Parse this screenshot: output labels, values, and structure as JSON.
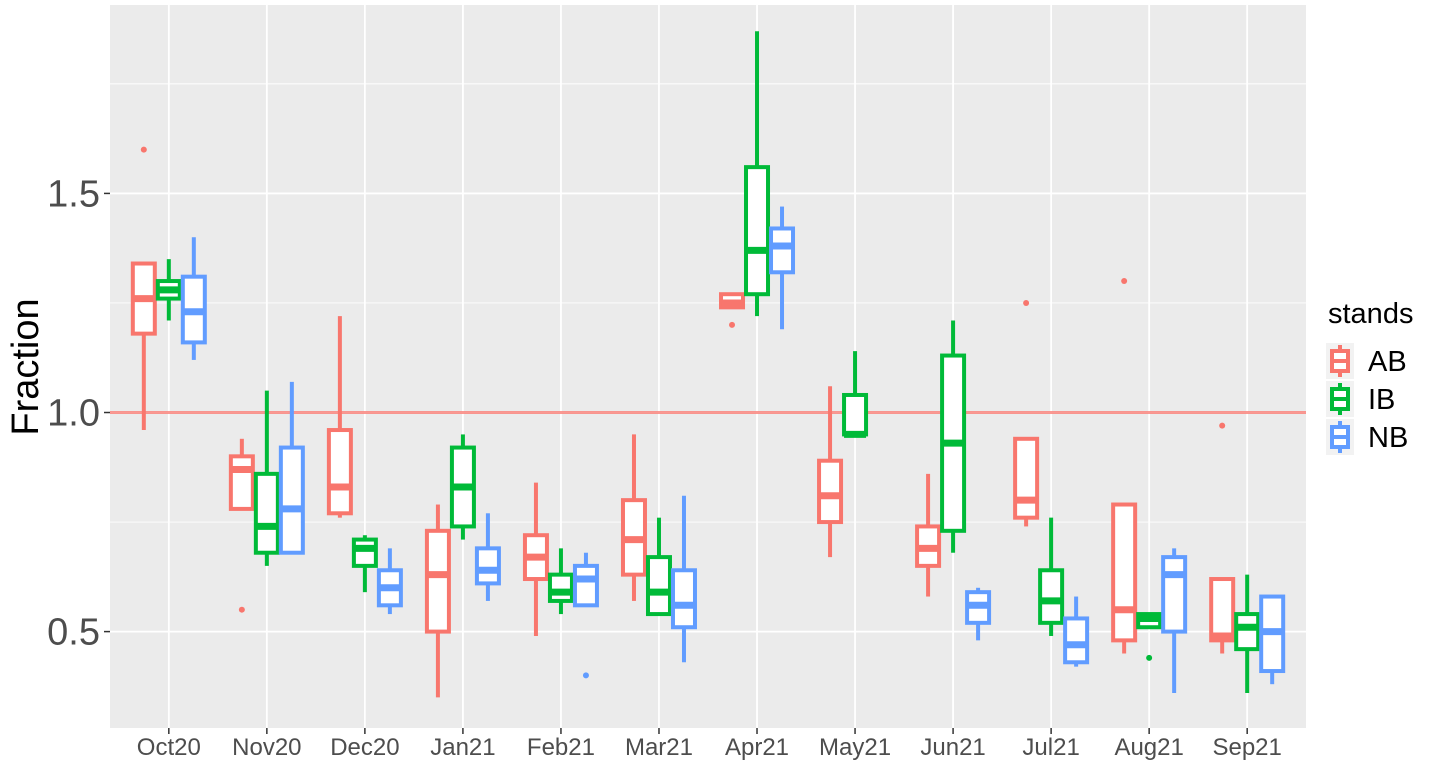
{
  "chart_data": {
    "type": "boxplot",
    "xlabel": "",
    "ylabel": "Fraction",
    "ylim": [
      0.28,
      1.93
    ],
    "yticks": [
      0.5,
      1.0,
      1.5
    ],
    "ytick_labels": [
      "0.5",
      "1.0",
      "1.5"
    ],
    "reference_line": {
      "y": 1.0,
      "color": "#F8766D"
    },
    "categories": [
      "Oct20",
      "Nov20",
      "Dec20",
      "Jan21",
      "Feb21",
      "Mar21",
      "Apr21",
      "May21",
      "Jun21",
      "Jul21",
      "Aug21",
      "Sep21"
    ],
    "legend": {
      "title": "stands",
      "position": "right"
    },
    "grid": true,
    "series": [
      {
        "name": "AB",
        "color": "#F8766D",
        "boxes": [
          {
            "category": "Oct20",
            "whislo": 0.96,
            "q1": 1.18,
            "med": 1.26,
            "q3": 1.34,
            "whishi": 1.34,
            "outliers": [
              1.6
            ]
          },
          {
            "category": "Nov20",
            "whislo": 0.78,
            "q1": 0.78,
            "med": 0.87,
            "q3": 0.9,
            "whishi": 0.94,
            "outliers": [
              0.55
            ]
          },
          {
            "category": "Dec20",
            "whislo": 0.76,
            "q1": 0.77,
            "med": 0.83,
            "q3": 0.96,
            "whishi": 1.22,
            "outliers": []
          },
          {
            "category": "Jan21",
            "whislo": 0.35,
            "q1": 0.5,
            "med": 0.63,
            "q3": 0.73,
            "whishi": 0.79,
            "outliers": []
          },
          {
            "category": "Feb21",
            "whislo": 0.49,
            "q1": 0.62,
            "med": 0.67,
            "q3": 0.72,
            "whishi": 0.84,
            "outliers": []
          },
          {
            "category": "Mar21",
            "whislo": 0.57,
            "q1": 0.63,
            "med": 0.71,
            "q3": 0.8,
            "whishi": 0.95,
            "outliers": []
          },
          {
            "category": "Apr21",
            "whislo": 1.24,
            "q1": 1.24,
            "med": 1.25,
            "q3": 1.27,
            "whishi": 1.27,
            "outliers": [
              1.2
            ]
          },
          {
            "category": "May21",
            "whislo": 0.67,
            "q1": 0.75,
            "med": 0.81,
            "q3": 0.89,
            "whishi": 1.06,
            "outliers": []
          },
          {
            "category": "Jun21",
            "whislo": 0.58,
            "q1": 0.65,
            "med": 0.69,
            "q3": 0.74,
            "whishi": 0.86,
            "outliers": []
          },
          {
            "category": "Jul21",
            "whislo": 0.74,
            "q1": 0.76,
            "med": 0.8,
            "q3": 0.94,
            "whishi": 0.94,
            "outliers": [
              1.25
            ]
          },
          {
            "category": "Aug21",
            "whislo": 0.45,
            "q1": 0.48,
            "med": 0.55,
            "q3": 0.79,
            "whishi": 0.79,
            "outliers": [
              1.3
            ]
          },
          {
            "category": "Sep21",
            "whislo": 0.45,
            "q1": 0.48,
            "med": 0.49,
            "q3": 0.62,
            "whishi": 0.62,
            "outliers": [
              0.97
            ]
          }
        ]
      },
      {
        "name": "IB",
        "color": "#00BA38",
        "boxes": [
          {
            "category": "Oct20",
            "whislo": 1.21,
            "q1": 1.26,
            "med": 1.28,
            "q3": 1.3,
            "whishi": 1.35,
            "outliers": []
          },
          {
            "category": "Nov20",
            "whislo": 0.65,
            "q1": 0.68,
            "med": 0.74,
            "q3": 0.86,
            "whishi": 1.05,
            "outliers": []
          },
          {
            "category": "Dec20",
            "whislo": 0.59,
            "q1": 0.65,
            "med": 0.69,
            "q3": 0.71,
            "whishi": 0.72,
            "outliers": []
          },
          {
            "category": "Jan21",
            "whislo": 0.71,
            "q1": 0.74,
            "med": 0.83,
            "q3": 0.92,
            "whishi": 0.95,
            "outliers": []
          },
          {
            "category": "Feb21",
            "whislo": 0.54,
            "q1": 0.57,
            "med": 0.59,
            "q3": 0.63,
            "whishi": 0.69,
            "outliers": []
          },
          {
            "category": "Mar21",
            "whislo": 0.54,
            "q1": 0.54,
            "med": 0.59,
            "q3": 0.67,
            "whishi": 0.76,
            "outliers": []
          },
          {
            "category": "Apr21",
            "whislo": 1.22,
            "q1": 1.27,
            "med": 1.37,
            "q3": 1.56,
            "whishi": 1.87,
            "outliers": []
          },
          {
            "category": "May21",
            "whislo": 0.95,
            "q1": 0.95,
            "med": 0.95,
            "q3": 1.04,
            "whishi": 1.14,
            "outliers": []
          },
          {
            "category": "Jun21",
            "whislo": 0.68,
            "q1": 0.73,
            "med": 0.93,
            "q3": 1.13,
            "whishi": 1.21,
            "outliers": []
          },
          {
            "category": "Jul21",
            "whislo": 0.49,
            "q1": 0.52,
            "med": 0.57,
            "q3": 0.64,
            "whishi": 0.76,
            "outliers": []
          },
          {
            "category": "Aug21",
            "whislo": 0.51,
            "q1": 0.51,
            "med": 0.53,
            "q3": 0.54,
            "whishi": 0.54,
            "outliers": [
              0.44
            ]
          },
          {
            "category": "Sep21",
            "whislo": 0.36,
            "q1": 0.46,
            "med": 0.51,
            "q3": 0.54,
            "whishi": 0.63,
            "outliers": []
          }
        ]
      },
      {
        "name": "NB",
        "color": "#619CFF",
        "boxes": [
          {
            "category": "Oct20",
            "whislo": 1.12,
            "q1": 1.16,
            "med": 1.23,
            "q3": 1.31,
            "whishi": 1.4,
            "outliers": []
          },
          {
            "category": "Nov20",
            "whislo": 0.68,
            "q1": 0.68,
            "med": 0.78,
            "q3": 0.92,
            "whishi": 1.07,
            "outliers": []
          },
          {
            "category": "Dec20",
            "whislo": 0.54,
            "q1": 0.56,
            "med": 0.6,
            "q3": 0.64,
            "whishi": 0.69,
            "outliers": []
          },
          {
            "category": "Jan21",
            "whislo": 0.57,
            "q1": 0.61,
            "med": 0.64,
            "q3": 0.69,
            "whishi": 0.77,
            "outliers": []
          },
          {
            "category": "Feb21",
            "whislo": 0.56,
            "q1": 0.56,
            "med": 0.62,
            "q3": 0.65,
            "whishi": 0.68,
            "outliers": [
              0.4
            ]
          },
          {
            "category": "Mar21",
            "whislo": 0.43,
            "q1": 0.51,
            "med": 0.56,
            "q3": 0.64,
            "whishi": 0.81,
            "outliers": []
          },
          {
            "category": "Apr21",
            "whislo": 1.19,
            "q1": 1.32,
            "med": 1.38,
            "q3": 1.42,
            "whishi": 1.47,
            "outliers": []
          },
          {
            "category": "Jun21",
            "whislo": 0.48,
            "q1": 0.52,
            "med": 0.56,
            "q3": 0.59,
            "whishi": 0.6,
            "outliers": []
          },
          {
            "category": "Jul21",
            "whislo": 0.42,
            "q1": 0.43,
            "med": 0.47,
            "q3": 0.53,
            "whishi": 0.58,
            "outliers": []
          },
          {
            "category": "Aug21",
            "whislo": 0.36,
            "q1": 0.5,
            "med": 0.63,
            "q3": 0.67,
            "whishi": 0.69,
            "outliers": []
          },
          {
            "category": "Sep21",
            "whislo": 0.38,
            "q1": 0.41,
            "med": 0.5,
            "q3": 0.58,
            "whishi": 0.58,
            "outliers": []
          }
        ]
      }
    ]
  }
}
